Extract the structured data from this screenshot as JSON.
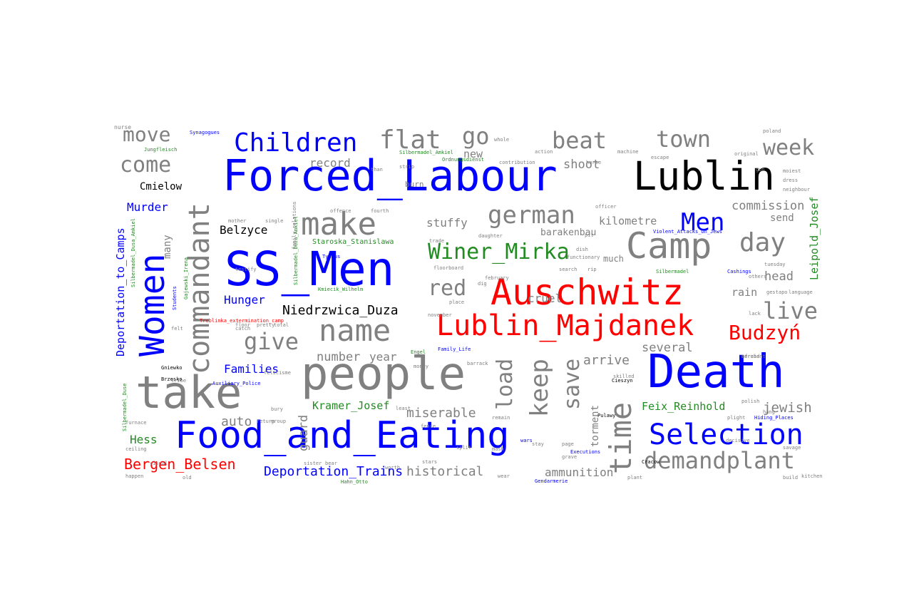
{
  "palette": {
    "gray": "#808080",
    "blue": "#0000ff",
    "red": "#ff0000",
    "green": "#228b22",
    "black": "#000000"
  },
  "words": [
    {
      "text": "Forced_Labour",
      "color": "blue"
    },
    {
      "text": "SS_Men",
      "color": "blue"
    },
    {
      "text": "Death",
      "color": "blue"
    },
    {
      "text": "Food_and_Eating",
      "color": "blue"
    },
    {
      "text": "Auschwitz",
      "color": "red"
    },
    {
      "text": "Lublin",
      "color": "black"
    },
    {
      "text": "people",
      "color": "gray"
    },
    {
      "text": "take",
      "color": "gray"
    },
    {
      "text": "Camp",
      "color": "gray"
    },
    {
      "text": "Women",
      "color": "blue"
    },
    {
      "text": "commandant",
      "color": "gray"
    },
    {
      "text": "Lublin_Majdanek",
      "color": "red"
    },
    {
      "text": "time",
      "color": "gray"
    },
    {
      "text": "make",
      "color": "gray"
    },
    {
      "text": "name",
      "color": "gray"
    },
    {
      "text": "Selection",
      "color": "blue"
    },
    {
      "text": "Children",
      "color": "blue"
    },
    {
      "text": "flat",
      "color": "gray"
    },
    {
      "text": "go",
      "color": "gray"
    },
    {
      "text": "beat",
      "color": "gray"
    },
    {
      "text": "town",
      "color": "gray"
    },
    {
      "text": "week",
      "color": "gray"
    },
    {
      "text": "move",
      "color": "gray"
    },
    {
      "text": "come",
      "color": "gray"
    },
    {
      "text": "german",
      "color": "gray"
    },
    {
      "text": "Men",
      "color": "blue"
    },
    {
      "text": "day",
      "color": "gray"
    },
    {
      "text": "Winer_Mirka",
      "color": "green"
    },
    {
      "text": "demandplant",
      "color": "gray"
    },
    {
      "text": "keep",
      "color": "gray"
    },
    {
      "text": "load",
      "color": "gray"
    },
    {
      "text": "save",
      "color": "gray"
    },
    {
      "text": "Budzyń",
      "color": "red"
    },
    {
      "text": "live",
      "color": "gray"
    },
    {
      "text": "give",
      "color": "gray"
    },
    {
      "text": "red",
      "color": "gray"
    },
    {
      "text": "Bergen_Belsen",
      "color": "red"
    },
    {
      "text": "Deportation_Trains",
      "color": "blue"
    },
    {
      "text": "Niedrzwica_Duza",
      "color": "black"
    },
    {
      "text": "Belzyce",
      "color": "black"
    },
    {
      "text": "Cmielow",
      "color": "black"
    },
    {
      "text": "Murder",
      "color": "blue"
    },
    {
      "text": "Hunger",
      "color": "blue"
    },
    {
      "text": "Families",
      "color": "blue"
    },
    {
      "text": "Hess",
      "color": "green"
    },
    {
      "text": "Kramer_Josef",
      "color": "green"
    },
    {
      "text": "Feix_Reinhold",
      "color": "green"
    },
    {
      "text": "Deportation_to_Camps",
      "color": "blue"
    },
    {
      "text": "Leipold_Josef",
      "color": "green"
    },
    {
      "text": "Staroska_Stanislawa",
      "color": "green"
    },
    {
      "text": "historical",
      "color": "gray"
    },
    {
      "text": "miserable",
      "color": "gray"
    },
    {
      "text": "several",
      "color": "gray"
    },
    {
      "text": "jewish",
      "color": "gray"
    },
    {
      "text": "ammunition",
      "color": "gray"
    },
    {
      "text": "arrive",
      "color": "gray"
    },
    {
      "text": "number",
      "color": "gray"
    },
    {
      "text": "year",
      "color": "gray"
    },
    {
      "text": "auto",
      "color": "gray"
    },
    {
      "text": "guard",
      "color": "gray"
    },
    {
      "text": "torment",
      "color": "gray"
    },
    {
      "text": "cruel",
      "color": "gray"
    },
    {
      "text": "stuffy",
      "color": "gray"
    },
    {
      "text": "barakenbau",
      "color": "gray"
    },
    {
      "text": "kilometre",
      "color": "gray"
    },
    {
      "text": "commission",
      "color": "gray"
    },
    {
      "text": "send",
      "color": "gray"
    },
    {
      "text": "head",
      "color": "gray"
    },
    {
      "text": "rain",
      "color": "gray"
    },
    {
      "text": "shoot",
      "color": "gray"
    },
    {
      "text": "record",
      "color": "gray"
    },
    {
      "text": "new",
      "color": "gray"
    },
    {
      "text": "many",
      "color": "gray"
    },
    {
      "text": "much",
      "color": "gray"
    },
    {
      "text": "burn",
      "color": "gray"
    },
    {
      "text": "Synagogues",
      "color": "blue"
    },
    {
      "text": "Silbermadel_Amkiel",
      "color": "green"
    },
    {
      "text": "Typhus",
      "color": "blue"
    },
    {
      "text": "Family_Life",
      "color": "blue"
    },
    {
      "text": "Auxiliary_Police",
      "color": "blue"
    },
    {
      "text": "Gendarmerie",
      "color": "blue"
    },
    {
      "text": "Executions",
      "color": "blue"
    },
    {
      "text": "Hiding_Places",
      "color": "blue"
    },
    {
      "text": "Violent_Attacks_On_Jews",
      "color": "blue"
    },
    {
      "text": "Cashings",
      "color": "blue"
    },
    {
      "text": "Ordnungsdienst",
      "color": "green"
    },
    {
      "text": "Jungfleisch",
      "color": "green"
    },
    {
      "text": "Silbermadel",
      "color": "green"
    },
    {
      "text": "Engel",
      "color": "green"
    },
    {
      "text": "Hahn_Otto",
      "color": "green"
    },
    {
      "text": "Kmiecik_Wilhelm",
      "color": "green"
    },
    {
      "text": "Silbermadel_Duza_Amkiel",
      "color": "green"
    },
    {
      "text": "Silbermadel_Duse",
      "color": "green"
    },
    {
      "text": "Gajewski_Irena",
      "color": "green"
    },
    {
      "text": "Students",
      "color": "blue"
    },
    {
      "text": "Treblinka_extermination_camp",
      "color": "red"
    },
    {
      "text": "Silbermadel_Dusa_Amkiel",
      "color": "green"
    },
    {
      "text": "family_relations",
      "color": "gray"
    },
    {
      "text": "plant",
      "color": "gray"
    },
    {
      "text": "afraid",
      "color": "gray"
    },
    {
      "text": "polish",
      "color": "gray"
    },
    {
      "text": "gestapo",
      "color": "gray"
    },
    {
      "text": "language",
      "color": "gray"
    },
    {
      "text": "february",
      "color": "gray"
    },
    {
      "text": "officer",
      "color": "gray"
    },
    {
      "text": "search",
      "color": "gray"
    },
    {
      "text": "functionary",
      "color": "gray"
    },
    {
      "text": "floorboard",
      "color": "gray"
    },
    {
      "text": "daughter",
      "color": "gray"
    },
    {
      "text": "machine",
      "color": "gray"
    },
    {
      "text": "escape",
      "color": "gray"
    },
    {
      "text": "original",
      "color": "gray"
    },
    {
      "text": "moiest",
      "color": "gray"
    },
    {
      "text": "dress",
      "color": "gray"
    },
    {
      "text": "neighbour",
      "color": "gray"
    },
    {
      "text": "tuesday",
      "color": "gray"
    },
    {
      "text": "merchant",
      "color": "gray"
    },
    {
      "text": "barrack",
      "color": "gray"
    },
    {
      "text": "tribe",
      "color": "gray"
    },
    {
      "text": "felicisme",
      "color": "gray"
    },
    {
      "text": "mother",
      "color": "gray"
    },
    {
      "text": "single",
      "color": "gray"
    },
    {
      "text": "offence",
      "color": "gray"
    },
    {
      "text": "fourth",
      "color": "gray"
    },
    {
      "text": "furnace",
      "color": "gray"
    },
    {
      "text": "ceiling",
      "color": "gray"
    },
    {
      "text": "happen",
      "color": "gray"
    },
    {
      "text": "remain",
      "color": "gray"
    },
    {
      "text": "plight",
      "color": "gray"
    },
    {
      "text": "decisive",
      "color": "gray"
    },
    {
      "text": "build",
      "color": "gray"
    },
    {
      "text": "lack",
      "color": "gray"
    },
    {
      "text": "others",
      "color": "gray"
    },
    {
      "text": "whole",
      "color": "gray"
    },
    {
      "text": "action",
      "color": "gray"
    },
    {
      "text": "contribution",
      "color": "gray"
    },
    {
      "text": "horse",
      "color": "gray"
    },
    {
      "text": "poland",
      "color": "gray"
    },
    {
      "text": "sister",
      "color": "gray"
    },
    {
      "text": "bear",
      "color": "gray"
    },
    {
      "text": "fence",
      "color": "gray"
    },
    {
      "text": "page",
      "color": "gray"
    },
    {
      "text": "grave",
      "color": "gray"
    },
    {
      "text": "felt",
      "color": "gray"
    },
    {
      "text": "catch",
      "color": "gray"
    },
    {
      "text": "november",
      "color": "gray"
    },
    {
      "text": "place",
      "color": "gray"
    },
    {
      "text": "trade",
      "color": "gray"
    },
    {
      "text": "return",
      "color": "gray"
    },
    {
      "text": "bury",
      "color": "gray"
    },
    {
      "text": "group",
      "color": "gray"
    },
    {
      "text": "money",
      "color": "gray"
    },
    {
      "text": "than",
      "color": "gray"
    },
    {
      "text": "strip",
      "color": "gray"
    },
    {
      "text": "visual",
      "color": "gray"
    },
    {
      "text": "testify",
      "color": "gray"
    },
    {
      "text": "floor",
      "color": "gray"
    },
    {
      "text": "pretty",
      "color": "gray"
    },
    {
      "text": "total",
      "color": "gray"
    },
    {
      "text": "gun",
      "color": "gray"
    },
    {
      "text": "kitchen",
      "color": "gray"
    },
    {
      "text": "savage",
      "color": "gray"
    },
    {
      "text": "least",
      "color": "gray"
    },
    {
      "text": "worth",
      "color": "gray"
    },
    {
      "text": "wear",
      "color": "gray"
    },
    {
      "text": "stars",
      "color": "gray"
    },
    {
      "text": "split",
      "color": "gray"
    },
    {
      "text": "dig",
      "color": "gray"
    },
    {
      "text": "pit",
      "color": "gray"
    },
    {
      "text": "rip",
      "color": "gray"
    },
    {
      "text": "stay",
      "color": "gray"
    },
    {
      "text": "dish",
      "color": "gray"
    },
    {
      "text": "hang",
      "color": "gray"
    },
    {
      "text": "mash",
      "color": "gray"
    },
    {
      "text": "old",
      "color": "gray"
    },
    {
      "text": "skilled",
      "color": "gray"
    },
    {
      "text": "Gniewko",
      "color": "black"
    },
    {
      "text": "Brzesko",
      "color": "black"
    },
    {
      "text": "Cieszyn",
      "color": "black"
    },
    {
      "text": "Cracow",
      "color": "black"
    },
    {
      "text": "Pulawy",
      "color": "black"
    },
    {
      "text": "wars",
      "color": "blue"
    },
    {
      "text": "nurse",
      "color": "gray"
    }
  ]
}
